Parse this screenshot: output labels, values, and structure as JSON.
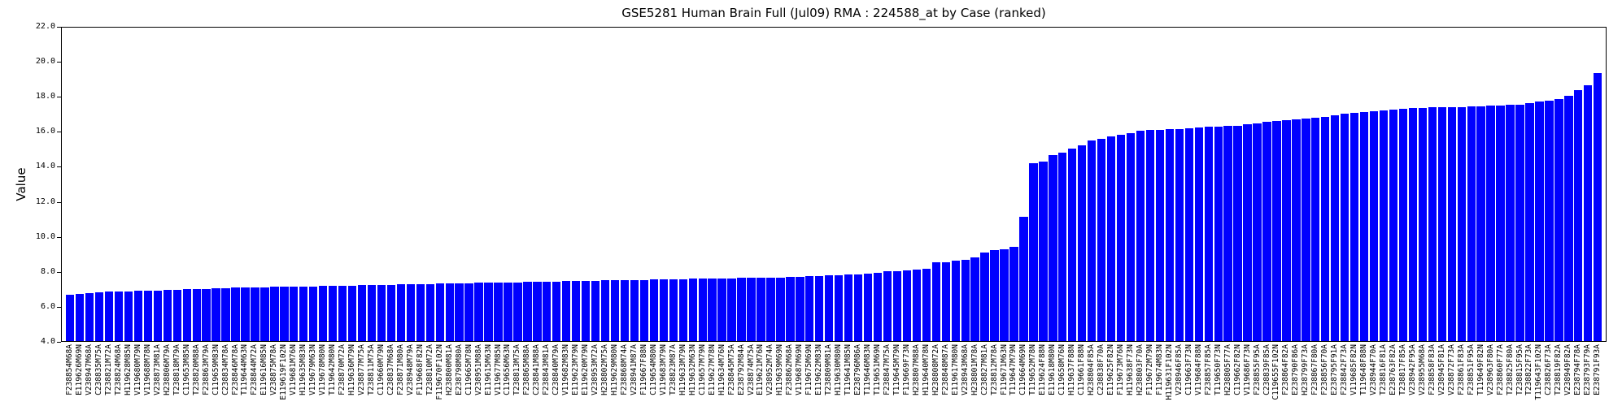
{
  "title": "GSE5281 Human Brain Full (Jul09) RMA : 224588_at by Case (ranked)",
  "y_axis": {
    "label": "Value",
    "tick_labels": [
      "22.0",
      "20.0",
      "18.0",
      "16.0",
      "14.0",
      "12.0",
      "10.0",
      "8.0",
      "6.0",
      "4.0"
    ]
  },
  "chart_data": {
    "type": "bar",
    "title": "GSE5281 Human Brain Full (Jul09) RMA : 224588_at by Case (ranked)",
    "xlabel": "",
    "ylabel": "Value",
    "ylim": [
      4.0,
      22.0
    ],
    "ytick_step": 2.0,
    "grid": false,
    "legend": "none",
    "bar_color": "#0000ff",
    "categories": [
      "F238854M68A",
      "E119626M69N",
      "V238947M68A",
      "C238835M75A",
      "T238821M72A",
      "T238824M68A",
      "H119628M85N",
      "V119680M79N",
      "V119688M78N",
      "V238873M81A",
      "H238806M79A",
      "T238818M79A",
      "C119653M85N",
      "T238820M88A",
      "F238863M79A",
      "C119659M83N",
      "C238834M78A",
      "F238846M78A",
      "T119644M63N",
      "F238844M72A",
      "E119616M85N",
      "V238875M78A",
      "E119619F102N",
      "V119681M76N",
      "H119635M83N",
      "V119679M63N",
      "V119678M80N",
      "T119642M80N",
      "F238870M72A",
      "H119636M79N",
      "V238877M75A",
      "T238811M75A",
      "C119660M79N",
      "C238837M68A",
      "F238871M80A",
      "V238948M79A",
      "F119668F82N",
      "T238810M72A",
      "F119670F102N",
      "H238800M81A",
      "E238798M80A",
      "C119665M78N",
      "V238951M88A",
      "E119615M63N",
      "V119677M85N",
      "C119656M63N",
      "T238813M75A",
      "F238865M88A",
      "C238841M88A",
      "F238843M81A",
      "C238840M79A",
      "V119682M83N",
      "E119623M79N",
      "E119620M79N",
      "V238953M72A",
      "H238802M75A",
      "H119629M80N",
      "F238868M74A",
      "V238941M87A",
      "F119667F88N",
      "C119654M80N",
      "V119683M79N",
      "T238823M87A",
      "H119633M79N",
      "H119632M63N",
      "C119657M79N",
      "E119627M78N",
      "H119634M76N",
      "F238845M75A",
      "E238792M84A",
      "V238874M75A",
      "E119621M76N",
      "V238952M74A",
      "H119639M69N",
      "F238862M68A",
      "V119687M69N",
      "F119675M69N",
      "E119622M83N",
      "T238809M81A",
      "H119630M80N",
      "T119641M85N",
      "E238796M86A",
      "T119646M83N",
      "T119651M69N",
      "F238847M75A",
      "T119645M79N",
      "F119669F73N",
      "H238807M88A",
      "H119640M78N",
      "H238808M72A",
      "F238848M87A",
      "E119617M80N",
      "V238943M68A",
      "H238801M78A",
      "C238827M81A",
      "T238812M78A",
      "F119671M63N",
      "T119647M79N",
      "C119664M69N",
      "T119652M78N",
      "E119624F88N",
      "E119618M80N",
      "C119658M76N",
      "H119637F88N",
      "C119661F88N",
      "H238804F85A",
      "C238838F70A",
      "E119625F82N",
      "F119673M76N",
      "H119638F73N",
      "H238803F70A",
      "F119672M79N",
      "F119674M83N",
      "H119631F102N",
      "V238946F85A",
      "C119663F73N",
      "V119684F88N",
      "F238857F85A",
      "T119650F73N",
      "H238805F77A",
      "C119662F82N",
      "V119686F73N",
      "F238855F95A",
      "C238839F85A",
      "C119655F102N",
      "F238864F82A",
      "E238790F86A",
      "H238799F73A",
      "F238867F80A",
      "F238856F70A",
      "E238795F91A",
      "F238842F73A",
      "V119685F82N",
      "T119648F88N",
      "V238944F70A",
      "T238816F81A",
      "E238763F82A",
      "T238817F85A",
      "V238942F95A",
      "V238955M68A",
      "F238858F83A",
      "V238945F81A",
      "V238872F73A",
      "F238861F83A",
      "F238851F95A",
      "T119649F82N",
      "V238963F80A",
      "F238860F77A",
      "T238825F80A",
      "T238815F95A",
      "T238822F73A",
      "T119643F102N",
      "C238826F73A",
      "T238819F82A",
      "V238949F82A",
      "E238794F78A",
      "E238793F79A",
      "E238791F93A"
    ],
    "values": [
      6.65,
      6.7,
      6.75,
      6.8,
      6.82,
      6.84,
      6.85,
      6.87,
      6.88,
      6.9,
      6.92,
      6.94,
      6.95,
      6.96,
      6.98,
      7.0,
      7.02,
      7.04,
      7.05,
      7.06,
      7.08,
      7.09,
      7.1,
      7.11,
      7.12,
      7.13,
      7.14,
      7.15,
      7.16,
      7.17,
      7.19,
      7.2,
      7.21,
      7.22,
      7.24,
      7.25,
      7.26,
      7.27,
      7.28,
      7.29,
      7.3,
      7.31,
      7.32,
      7.33,
      7.34,
      7.35,
      7.36,
      7.37,
      7.38,
      7.4,
      7.41,
      7.42,
      7.43,
      7.44,
      7.45,
      7.46,
      7.47,
      7.48,
      7.49,
      7.5,
      7.51,
      7.52,
      7.53,
      7.54,
      7.55,
      7.56,
      7.57,
      7.58,
      7.59,
      7.6,
      7.61,
      7.62,
      7.63,
      7.64,
      7.65,
      7.68,
      7.7,
      7.73,
      7.76,
      7.78,
      7.8,
      7.81,
      7.83,
      7.88,
      7.97,
      8.0,
      8.03,
      8.08,
      8.15,
      8.5,
      8.52,
      8.58,
      8.65,
      8.77,
      9.05,
      9.2,
      9.25,
      9.4,
      11.1,
      14.15,
      14.27,
      14.62,
      14.75,
      15.0,
      15.2,
      15.48,
      15.55,
      15.7,
      15.8,
      15.9,
      16.0,
      16.05,
      16.08,
      16.1,
      16.13,
      16.16,
      16.2,
      16.23,
      16.26,
      16.28,
      16.31,
      16.37,
      16.42,
      16.53,
      16.58,
      16.62,
      16.67,
      16.71,
      16.76,
      16.82,
      16.89,
      16.98,
      17.03,
      17.08,
      17.14,
      17.18,
      17.22,
      17.26,
      17.3,
      17.32,
      17.34,
      17.35,
      17.36,
      17.37,
      17.39,
      17.42,
      17.45,
      17.47,
      17.5,
      17.52,
      17.6,
      17.7,
      17.73,
      17.84,
      18.0,
      18.35,
      18.6,
      19.3
    ]
  }
}
